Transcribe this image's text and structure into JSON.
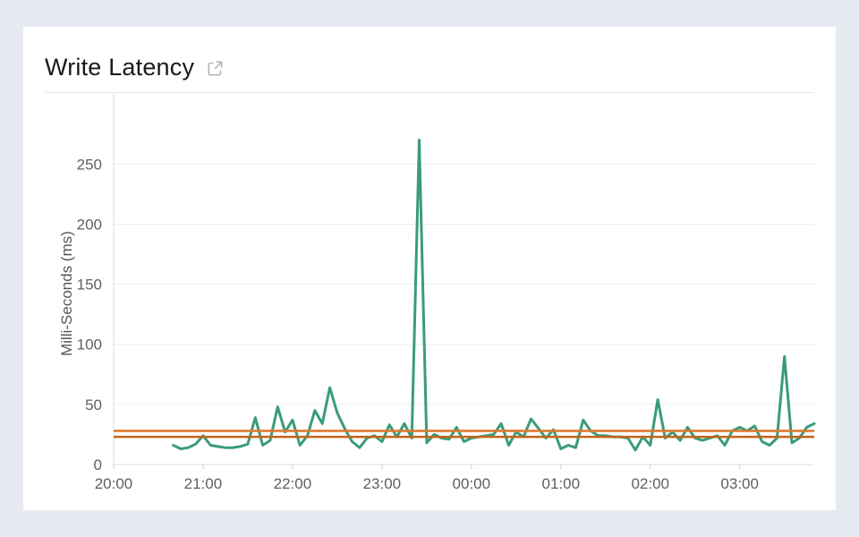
{
  "page": {
    "background_color": "#e8eaf2",
    "panel_color": "#ffffff"
  },
  "header": {
    "title": "Write Latency",
    "icon": "external-link-icon",
    "icon_color": "#b4b4b4",
    "title_color": "#1a1a1a"
  },
  "chart_data": {
    "type": "line",
    "title": "Write Latency",
    "xlabel": "",
    "ylabel": "Milli-Seconds (ms)",
    "x_tick_labels": [
      "20:00",
      "21:00",
      "22:00",
      "23:00",
      "00:00",
      "01:00",
      "02:00",
      "03:00"
    ],
    "x_tick_minutes": [
      0,
      60,
      120,
      180,
      240,
      300,
      360,
      420
    ],
    "x_axis_span_minutes": 470,
    "y_ticks": [
      0,
      50,
      100,
      150,
      200,
      250
    ],
    "ylim": [
      0,
      286
    ],
    "grid": "horizontal",
    "legend": "none",
    "series": [
      {
        "name": "write-latency-ms",
        "color": "#3a9b7c",
        "x_start_minutes": 40,
        "x_interval_minutes": 5,
        "values": [
          16,
          13,
          14,
          17,
          24,
          16,
          15,
          14,
          14,
          15,
          17,
          39,
          16,
          20,
          48,
          27,
          37,
          16,
          24,
          45,
          34,
          64,
          43,
          30,
          19,
          14,
          22,
          24,
          19,
          33,
          23,
          34,
          22,
          270,
          18,
          25,
          22,
          21,
          31,
          19,
          22,
          23,
          24,
          25,
          34,
          16,
          27,
          23,
          38,
          30,
          22,
          29,
          13,
          16,
          14,
          37,
          28,
          24,
          24,
          23,
          23,
          22,
          12,
          23,
          16,
          54,
          22,
          27,
          20,
          31,
          22,
          20,
          22,
          24,
          16,
          28,
          31,
          28,
          32,
          19,
          16,
          22,
          90,
          18,
          22,
          31,
          34
        ]
      }
    ],
    "reference_lines": [
      {
        "value": 28,
        "color": "#de7a2e"
      },
      {
        "value": 23,
        "color": "#c2641c"
      }
    ]
  }
}
